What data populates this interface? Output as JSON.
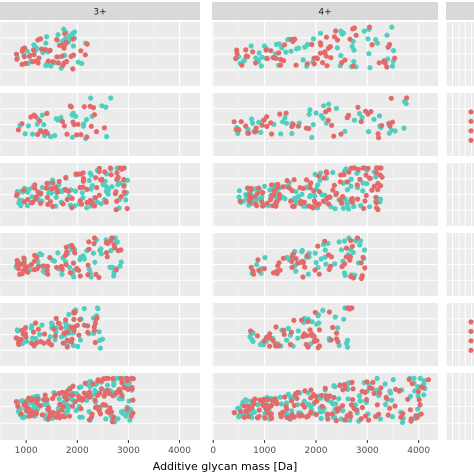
{
  "chart_data": {
    "type": "scatter",
    "facet_columns": [
      "3+",
      "4+",
      ""
    ],
    "facet_rows": 6,
    "xlabel": "Additive glycan mass [Da]",
    "ylabel": "",
    "x_ticks": [
      0,
      1000,
      2000,
      3000,
      4000
    ],
    "xlim": [
      0,
      4400
    ],
    "grid": true,
    "colors": {
      "series_a": "#e36a6a",
      "series_b": "#4fcfc0"
    },
    "panel_groups": [
      {
        "col": 0,
        "row": 0,
        "x": [
          [
            900,
            1500,
            1750
          ],
          [
            1000,
            1400,
            1900
          ],
          [
            1300,
            1650,
            1850
          ]
        ]
      },
      {
        "col": 0,
        "row": 1,
        "x": [
          [
            900,
            1200,
            1650,
            2050
          ],
          [
            950,
            1450,
            1850,
            2200
          ],
          [
            1700,
            2000,
            2500,
            2600
          ]
        ]
      },
      {
        "col": 0,
        "row": 2,
        "x": [
          [
            900,
            1900,
            2700
          ],
          [
            1100,
            2100,
            2900
          ],
          [
            1300,
            2000,
            2800
          ]
        ]
      },
      {
        "col": 0,
        "row": 3,
        "x": [
          [
            950,
            1800,
            2700
          ],
          [
            1300,
            2100,
            2900
          ],
          [
            1400,
            2000,
            2800
          ]
        ]
      },
      {
        "col": 0,
        "row": 4,
        "x": [
          [
            900,
            1700,
            2200
          ],
          [
            1000,
            1600,
            2200
          ],
          [
            1200,
            1900,
            2400
          ]
        ]
      },
      {
        "col": 0,
        "row": 5,
        "x": [
          [
            900,
            2300,
            3000
          ],
          [
            1200,
            2500,
            3100
          ],
          [
            1500,
            2300,
            2900
          ]
        ]
      },
      {
        "col": 1,
        "row": 0,
        "x": [
          [
            400,
            1000,
            2500
          ],
          [
            1200,
            2200,
            3300
          ],
          [
            1300,
            2500,
            3500
          ]
        ]
      },
      {
        "col": 1,
        "row": 1,
        "x": [
          [
            400,
            1000,
            1400
          ],
          [
            1000,
            1500,
            2000
          ],
          [
            1800,
            2400,
            3000
          ]
        ]
      },
      {
        "col": 1,
        "row": 2,
        "x": [
          [
            600,
            1500,
            2600
          ],
          [
            1000,
            2100,
            3200
          ],
          [
            1300,
            2000,
            2800
          ]
        ]
      },
      {
        "col": 1,
        "row": 3,
        "x": [
          [
            800,
            1500,
            2200
          ],
          [
            1300,
            1800,
            2500
          ],
          [
            1700,
            2300,
            2900
          ]
        ]
      },
      {
        "col": 1,
        "row": 4,
        "x": [
          [
            800,
            1400,
            2000
          ],
          [
            1000,
            1600,
            2200
          ],
          [
            1200,
            2000,
            2500
          ]
        ]
      },
      {
        "col": 1,
        "row": 5,
        "x": [
          [
            400,
            1700,
            3000
          ],
          [
            1300,
            2300,
            3300
          ],
          [
            1500,
            2500,
            3500
          ]
        ]
      }
    ],
    "panel_counts": [
      42,
      30,
      80,
      60,
      55,
      130,
      60,
      45,
      110,
      50,
      45,
      140
    ],
    "x_extent_per_panel": [
      [
        800,
        2200
      ],
      [
        800,
        2700
      ],
      [
        800,
        3000
      ],
      [
        800,
        2900
      ],
      [
        800,
        2500
      ],
      [
        800,
        3100
      ],
      [
        400,
        3600
      ],
      [
        400,
        3800
      ],
      [
        500,
        3300
      ],
      [
        700,
        3000
      ],
      [
        700,
        2700
      ],
      [
        400,
        4200
      ]
    ]
  }
}
